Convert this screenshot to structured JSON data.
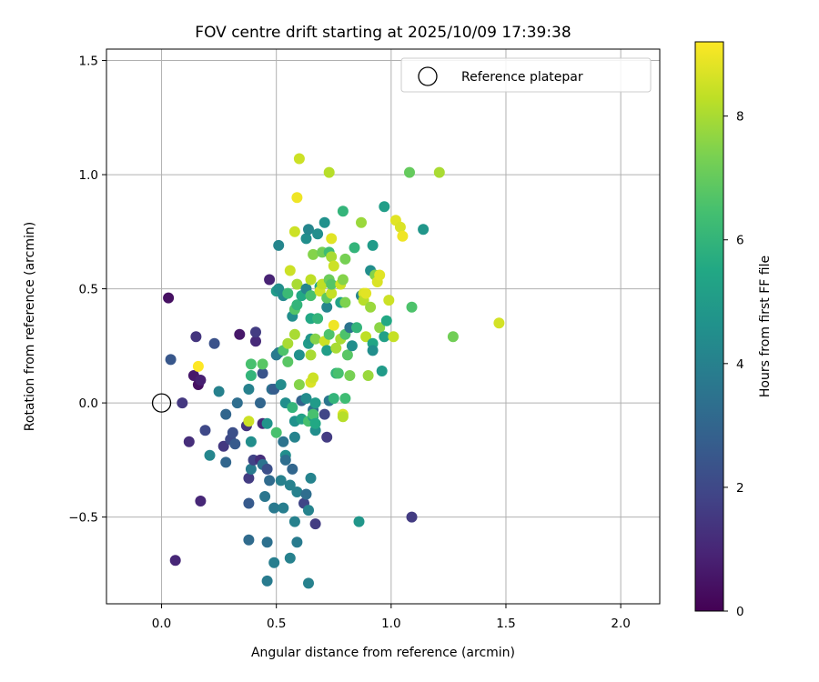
{
  "chart_data": {
    "type": "scatter",
    "title": "FOV centre drift starting at 2025/10/09 17:39:38",
    "xlabel": "Angular distance from reference (arcmin)",
    "ylabel": "Rotation from reference (arcmin)",
    "xlim": [
      -0.24,
      2.17
    ],
    "ylim": [
      -0.88,
      1.55
    ],
    "xticks": [
      0.0,
      0.5,
      1.0,
      1.5,
      2.0
    ],
    "xtick_labels": [
      "0.0",
      "0.5",
      "1.0",
      "1.5",
      "2.0"
    ],
    "yticks": [
      -0.5,
      0.0,
      0.5,
      1.0,
      1.5
    ],
    "ytick_labels": [
      "−0.5",
      "0.0",
      "0.5",
      "1.0",
      "1.5"
    ],
    "grid": true,
    "colorbar": {
      "label": "Hours from first FF file",
      "range": [
        0,
        9.2
      ],
      "ticks": [
        0,
        2,
        4,
        6,
        8
      ],
      "tick_labels": [
        "0",
        "2",
        "4",
        "6",
        "8"
      ],
      "colormap": "viridis"
    },
    "legend": {
      "position": "top-right",
      "entries": [
        "Reference platepar"
      ]
    },
    "reference_point": {
      "x": 0.0,
      "y": 0.0,
      "label": "Reference platepar"
    },
    "points": [
      [
        0.03,
        0.46,
        0.4
      ],
      [
        0.04,
        0.19,
        2.5
      ],
      [
        0.09,
        0.0,
        1.5
      ],
      [
        0.12,
        -0.17,
        1.2
      ],
      [
        0.14,
        0.12,
        0.6
      ],
      [
        0.15,
        0.29,
        1.4
      ],
      [
        0.16,
        0.08,
        0.4
      ],
      [
        0.17,
        0.1,
        0.8
      ],
      [
        0.16,
        0.16,
        9.2
      ],
      [
        0.17,
        -0.43,
        1.0
      ],
      [
        0.19,
        -0.12,
        2.0
      ],
      [
        0.06,
        -0.69,
        1.0
      ],
      [
        0.23,
        0.26,
        2.3
      ],
      [
        0.25,
        0.05,
        4.0
      ],
      [
        0.27,
        -0.19,
        1.5
      ],
      [
        0.28,
        -0.05,
        3.0
      ],
      [
        0.28,
        -0.26,
        3.0
      ],
      [
        0.3,
        -0.16,
        2.0
      ],
      [
        0.31,
        -0.13,
        2.2
      ],
      [
        0.32,
        -0.18,
        2.6
      ],
      [
        0.21,
        -0.23,
        4.2
      ],
      [
        0.34,
        0.3,
        0.6
      ],
      [
        0.33,
        0.0,
        3.3
      ],
      [
        0.37,
        -0.1,
        1.4
      ],
      [
        0.38,
        -0.08,
        8.5
      ],
      [
        0.38,
        0.06,
        4.0
      ],
      [
        0.38,
        -0.6,
        3.2
      ],
      [
        0.38,
        -0.33,
        1.6
      ],
      [
        0.38,
        -0.44,
        2.6
      ],
      [
        0.39,
        0.12,
        6.0
      ],
      [
        0.39,
        -0.17,
        4.5
      ],
      [
        0.39,
        0.17,
        6.5
      ],
      [
        0.39,
        -0.29,
        3.8
      ],
      [
        0.4,
        -0.25,
        1.8
      ],
      [
        0.41,
        0.27,
        1.1
      ],
      [
        0.41,
        0.31,
        1.6
      ],
      [
        0.43,
        -0.25,
        1.2
      ],
      [
        0.44,
        -0.27,
        3.5
      ],
      [
        0.44,
        0.13,
        2.4
      ],
      [
        0.44,
        0.17,
        6.8
      ],
      [
        0.43,
        0.0,
        3.0
      ],
      [
        0.44,
        -0.09,
        1.1
      ],
      [
        0.45,
        -0.41,
        3.6
      ],
      [
        0.46,
        -0.29,
        2.2
      ],
      [
        0.46,
        -0.61,
        3.4
      ],
      [
        0.46,
        -0.09,
        4.7
      ],
      [
        0.46,
        -0.78,
        3.8
      ],
      [
        0.47,
        -0.34,
        3.2
      ],
      [
        0.47,
        0.54,
        0.9
      ],
      [
        0.48,
        0.06,
        3.4
      ],
      [
        0.49,
        -0.46,
        3.7
      ],
      [
        0.49,
        0.06,
        2.7
      ],
      [
        0.49,
        -0.7,
        3.9
      ],
      [
        0.5,
        0.49,
        5.0
      ],
      [
        0.5,
        0.21,
        3.7
      ],
      [
        0.5,
        -0.13,
        6.5
      ],
      [
        0.51,
        0.69,
        4.2
      ],
      [
        0.51,
        0.22,
        3.8
      ],
      [
        0.51,
        0.5,
        4.5
      ],
      [
        0.52,
        -0.34,
        4.0
      ],
      [
        0.52,
        0.08,
        4.4
      ],
      [
        0.53,
        -0.46,
        3.9
      ],
      [
        0.53,
        -0.17,
        3.5
      ],
      [
        0.53,
        0.47,
        4.3
      ],
      [
        0.53,
        0.23,
        6.6
      ],
      [
        0.54,
        0.0,
        4.5
      ],
      [
        0.54,
        -0.23,
        4.5
      ],
      [
        0.54,
        -0.25,
        3.3
      ],
      [
        0.55,
        0.48,
        6.2
      ],
      [
        0.55,
        0.26,
        8.0
      ],
      [
        0.55,
        0.18,
        6.8
      ],
      [
        0.56,
        0.58,
        8.5
      ],
      [
        0.56,
        -0.36,
        4.0
      ],
      [
        0.56,
        -0.68,
        4.0
      ],
      [
        0.57,
        0.38,
        4.5
      ],
      [
        0.57,
        -0.02,
        6.0
      ],
      [
        0.57,
        -0.29,
        3.0
      ],
      [
        0.58,
        -0.52,
        4.0
      ],
      [
        0.58,
        0.41,
        6.7
      ],
      [
        0.58,
        0.3,
        8.0
      ],
      [
        0.58,
        0.75,
        8.5
      ],
      [
        0.58,
        -0.08,
        4.6
      ],
      [
        0.58,
        -0.15,
        4.1
      ],
      [
        0.59,
        0.52,
        8.0
      ],
      [
        0.59,
        -0.39,
        4.0
      ],
      [
        0.59,
        -0.61,
        3.8
      ],
      [
        0.59,
        0.43,
        6.0
      ],
      [
        0.59,
        0.9,
        9.0
      ],
      [
        0.6,
        0.21,
        4.6
      ],
      [
        0.6,
        0.08,
        7.5
      ],
      [
        0.6,
        1.07,
        8.5
      ],
      [
        0.61,
        -0.07,
        5.2
      ],
      [
        0.61,
        0.47,
        5.5
      ],
      [
        0.61,
        0.01,
        2.9
      ],
      [
        0.62,
        -0.44,
        1.9
      ],
      [
        0.63,
        0.5,
        4.2
      ],
      [
        0.63,
        -0.4,
        3.3
      ],
      [
        0.63,
        0.72,
        4.5
      ],
      [
        0.63,
        0.02,
        4.4
      ],
      [
        0.64,
        0.76,
        4.2
      ],
      [
        0.64,
        -0.08,
        6.5
      ],
      [
        0.64,
        -0.47,
        4.1
      ],
      [
        0.64,
        0.26,
        5.0
      ],
      [
        0.64,
        -0.79,
        4.0
      ],
      [
        0.65,
        0.47,
        6.5
      ],
      [
        0.65,
        0.21,
        8.0
      ],
      [
        0.65,
        0.28,
        4.8
      ],
      [
        0.65,
        0.09,
        8.7
      ],
      [
        0.65,
        0.54,
        8.3
      ],
      [
        0.65,
        -0.33,
        4.1
      ],
      [
        0.65,
        0.37,
        5.5
      ],
      [
        0.66,
        0.11,
        8.5
      ],
      [
        0.66,
        0.65,
        7.5
      ],
      [
        0.66,
        -0.03,
        3.4
      ],
      [
        0.66,
        -0.06,
        5.2
      ],
      [
        0.66,
        -0.05,
        6.5
      ],
      [
        0.67,
        -0.12,
        4.5
      ],
      [
        0.67,
        -0.09,
        5.5
      ],
      [
        0.67,
        0.28,
        7.5
      ],
      [
        0.67,
        0.0,
        5.0
      ],
      [
        0.67,
        -0.53,
        1.6
      ],
      [
        0.68,
        0.37,
        6.0
      ],
      [
        0.68,
        0.74,
        4.5
      ],
      [
        0.69,
        0.51,
        5.5
      ],
      [
        0.69,
        0.49,
        8.6
      ],
      [
        0.7,
        0.66,
        7.2
      ],
      [
        0.7,
        0.52,
        8.3
      ],
      [
        0.71,
        0.27,
        8.5
      ],
      [
        0.71,
        0.79,
        4.6
      ],
      [
        0.71,
        -0.05,
        1.9
      ],
      [
        0.72,
        0.42,
        4.2
      ],
      [
        0.72,
        -0.15,
        1.6
      ],
      [
        0.72,
        0.23,
        5.1
      ],
      [
        0.72,
        0.46,
        6.9
      ],
      [
        0.73,
        0.66,
        6.3
      ],
      [
        0.73,
        0.01,
        3.6
      ],
      [
        0.73,
        0.54,
        7.1
      ],
      [
        0.73,
        0.3,
        6.6
      ],
      [
        0.73,
        1.01,
        8.2
      ],
      [
        0.74,
        0.64,
        8.0
      ],
      [
        0.74,
        0.48,
        8.4
      ],
      [
        0.74,
        0.52,
        6.7
      ],
      [
        0.74,
        0.72,
        8.8
      ],
      [
        0.75,
        0.6,
        8.5
      ],
      [
        0.75,
        0.02,
        6.0
      ],
      [
        0.75,
        0.34,
        9.0
      ],
      [
        0.76,
        0.24,
        8.0
      ],
      [
        0.76,
        0.13,
        6.0
      ],
      [
        0.77,
        0.13,
        6.5
      ],
      [
        0.78,
        0.28,
        8.0
      ],
      [
        0.78,
        0.52,
        8.5
      ],
      [
        0.78,
        0.44,
        5.3
      ],
      [
        0.79,
        0.54,
        7.5
      ],
      [
        0.79,
        0.84,
        6.0
      ],
      [
        0.79,
        -0.05,
        8.7
      ],
      [
        0.79,
        -0.06,
        8.2
      ],
      [
        0.8,
        0.44,
        7.4
      ],
      [
        0.8,
        0.02,
        6.3
      ],
      [
        0.8,
        0.3,
        6.6
      ],
      [
        0.8,
        0.63,
        7.3
      ],
      [
        0.81,
        0.21,
        6.8
      ],
      [
        0.82,
        0.33,
        3.5
      ],
      [
        0.82,
        0.12,
        7.3
      ],
      [
        0.83,
        0.25,
        4.5
      ],
      [
        0.84,
        0.68,
        6.0
      ],
      [
        0.85,
        0.33,
        6.0
      ],
      [
        0.86,
        -0.52,
        4.8
      ],
      [
        0.87,
        0.79,
        7.8
      ],
      [
        0.87,
        0.47,
        4.2
      ],
      [
        0.88,
        0.48,
        8.7
      ],
      [
        0.88,
        0.45,
        8.2
      ],
      [
        0.89,
        0.48,
        8.8
      ],
      [
        0.89,
        0.29,
        8.3
      ],
      [
        0.9,
        0.12,
        7.8
      ],
      [
        0.91,
        0.42,
        7.8
      ],
      [
        0.91,
        0.58,
        4.5
      ],
      [
        0.92,
        0.69,
        5.0
      ],
      [
        0.92,
        0.26,
        5.4
      ],
      [
        0.92,
        0.23,
        4.5
      ],
      [
        0.93,
        0.56,
        7.5
      ],
      [
        0.94,
        0.53,
        8.7
      ],
      [
        0.95,
        0.56,
        8.8
      ],
      [
        0.95,
        0.33,
        7.6
      ],
      [
        0.96,
        0.14,
        5.0
      ],
      [
        0.97,
        0.29,
        5.2
      ],
      [
        0.97,
        0.86,
        5.1
      ],
      [
        0.98,
        0.36,
        5.5
      ],
      [
        0.99,
        0.45,
        8.5
      ],
      [
        1.01,
        0.29,
        8.4
      ],
      [
        1.02,
        0.8,
        8.8
      ],
      [
        1.04,
        0.77,
        8.7
      ],
      [
        1.05,
        0.73,
        9.0
      ],
      [
        1.08,
        1.01,
        7.0
      ],
      [
        1.09,
        0.42,
        6.6
      ],
      [
        1.09,
        -0.5,
        1.6
      ],
      [
        1.14,
        0.76,
        4.8
      ],
      [
        1.21,
        1.01,
        8.0
      ],
      [
        1.27,
        0.29,
        7.2
      ],
      [
        1.47,
        0.35,
        8.6
      ]
    ]
  }
}
